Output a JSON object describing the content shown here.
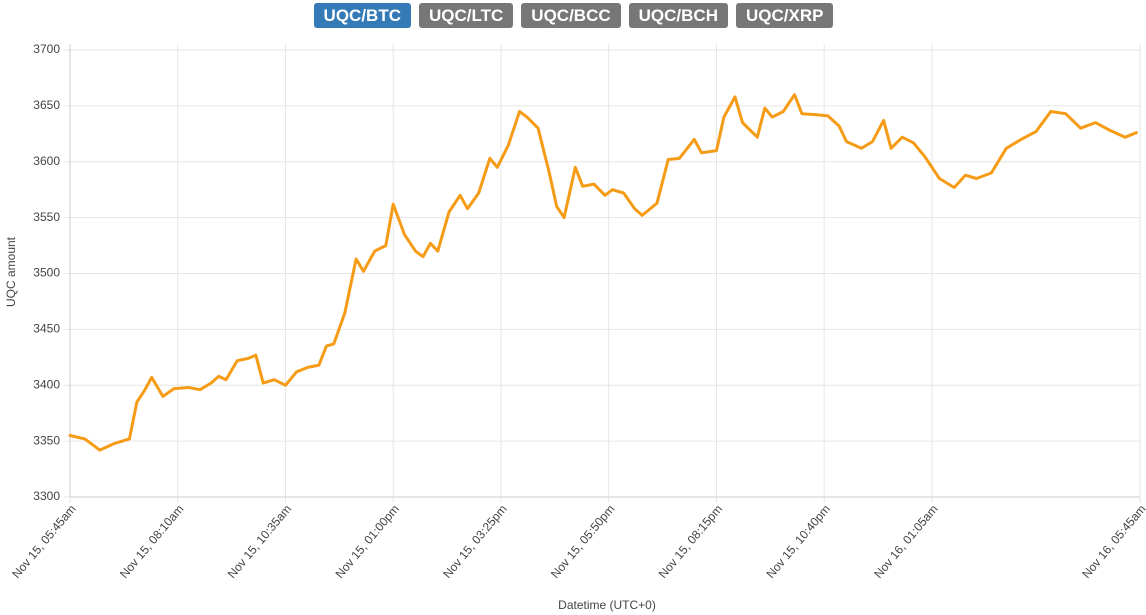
{
  "buttons": [
    "UQC/BTC",
    "UQC/LTC",
    "UQC/BCC",
    "UQC/BCH",
    "UQC/XRP"
  ],
  "chart_data": {
    "type": "line",
    "x_label": "Datetime (UTC+0)",
    "y_label": "UQC amount",
    "xlim": [
      0,
      1440
    ],
    "xticks": [
      {
        "value": 0,
        "label": "Nov 15, 05:45am"
      },
      {
        "value": 145,
        "label": "Nov 15, 08:10am"
      },
      {
        "value": 290,
        "label": "Nov 15, 10:35am"
      },
      {
        "value": 435,
        "label": "Nov 15, 01:00pm"
      },
      {
        "value": 580,
        "label": "Nov 15, 03:25pm"
      },
      {
        "value": 725,
        "label": "Nov 15, 05:50pm"
      },
      {
        "value": 870,
        "label": "Nov 15, 08:15pm"
      },
      {
        "value": 1015,
        "label": "Nov 15, 10:40pm"
      },
      {
        "value": 1160,
        "label": "Nov 16, 01:05am"
      },
      {
        "value": 1440,
        "label": "Nov 16, 05:45am"
      }
    ],
    "ylim": [
      3300,
      3700
    ],
    "yticks": [
      3300,
      3350,
      3400,
      3450,
      3500,
      3550,
      3600,
      3650,
      3700
    ],
    "grid": true,
    "series": [
      {
        "color": "#f59b16",
        "x": [
          0,
          20,
          40,
          60,
          80,
          90,
          100,
          110,
          125,
          140,
          160,
          175,
          190,
          200,
          210,
          225,
          240,
          250,
          260,
          275,
          290,
          305,
          320,
          335,
          345,
          355,
          370,
          385,
          395,
          410,
          425,
          435,
          450,
          465,
          475,
          485,
          495,
          510,
          525,
          535,
          550,
          565,
          575,
          590,
          605,
          615,
          630,
          645,
          655,
          665,
          680,
          690,
          705,
          720,
          730,
          745,
          760,
          770,
          790,
          805,
          820,
          840,
          850,
          870,
          880,
          895,
          905,
          925,
          935,
          945,
          960,
          975,
          985,
          1005,
          1020,
          1035,
          1045,
          1065,
          1080,
          1095,
          1105,
          1120,
          1135,
          1150,
          1170,
          1190,
          1205,
          1220,
          1240,
          1260,
          1280,
          1300,
          1320,
          1340,
          1360,
          1380,
          1400,
          1420,
          1435
        ],
        "values": [
          3355,
          3352,
          3342,
          3348,
          3352,
          3385,
          3395,
          3407,
          3390,
          3397,
          3398,
          3396,
          3402,
          3408,
          3405,
          3422,
          3424,
          3427,
          3402,
          3405,
          3400,
          3412,
          3416,
          3418,
          3435,
          3437,
          3465,
          3513,
          3502,
          3520,
          3525,
          3562,
          3535,
          3520,
          3515,
          3527,
          3520,
          3555,
          3570,
          3558,
          3572,
          3603,
          3595,
          3615,
          3645,
          3640,
          3630,
          3590,
          3560,
          3550,
          3595,
          3578,
          3580,
          3570,
          3575,
          3572,
          3558,
          3552,
          3563,
          3602,
          3603,
          3620,
          3608,
          3610,
          3640,
          3658,
          3635,
          3622,
          3648,
          3640,
          3645,
          3660,
          3643,
          3642,
          3641,
          3632,
          3618,
          3612,
          3618,
          3637,
          3612,
          3622,
          3617,
          3605,
          3585,
          3577,
          3588,
          3585,
          3590,
          3612,
          3620,
          3627,
          3645,
          3643,
          3630,
          3635,
          3628,
          3622,
          3626
        ]
      }
    ]
  }
}
